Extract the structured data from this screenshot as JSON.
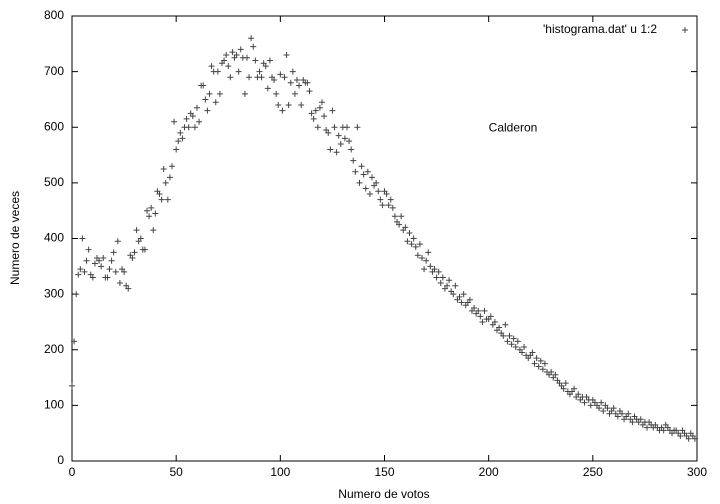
{
  "chart_data": {
    "type": "scatter",
    "xlabel": "Numero de votos",
    "ylabel": "Numero de veces",
    "annotation": "Calderon",
    "xlim": [
      0,
      300
    ],
    "xticks": [
      0,
      50,
      100,
      150,
      200,
      250,
      300
    ],
    "ylim": [
      0,
      800
    ],
    "yticks": [
      0,
      100,
      200,
      300,
      400,
      500,
      600,
      700,
      800
    ],
    "legend": "top-right",
    "grid": false,
    "x": [
      0,
      1,
      2,
      3,
      4,
      5,
      6,
      7,
      8,
      9,
      10,
      11,
      12,
      13,
      14,
      15,
      16,
      17,
      18,
      19,
      20,
      21,
      22,
      23,
      24,
      25,
      26,
      27,
      28,
      29,
      30,
      31,
      32,
      33,
      34,
      35,
      36,
      37,
      38,
      39,
      40,
      41,
      42,
      43,
      44,
      45,
      46,
      47,
      48,
      49,
      50,
      51,
      52,
      53,
      54,
      55,
      56,
      57,
      58,
      59,
      60,
      61,
      62,
      63,
      64,
      65,
      66,
      67,
      68,
      69,
      70,
      71,
      72,
      73,
      74,
      75,
      76,
      77,
      78,
      79,
      80,
      81,
      82,
      83,
      84,
      85,
      86,
      87,
      88,
      89,
      90,
      91,
      92,
      93,
      94,
      95,
      96,
      97,
      98,
      99,
      100,
      101,
      102,
      103,
      104,
      105,
      106,
      107,
      108,
      109,
      110,
      111,
      112,
      113,
      114,
      115,
      116,
      117,
      118,
      119,
      120,
      121,
      122,
      123,
      124,
      125,
      126,
      127,
      128,
      129,
      130,
      131,
      132,
      133,
      134,
      135,
      136,
      137,
      138,
      139,
      140,
      141,
      142,
      143,
      144,
      145,
      146,
      147,
      148,
      149,
      150,
      151,
      152,
      153,
      154,
      155,
      156,
      157,
      158,
      159,
      160,
      161,
      162,
      163,
      164,
      165,
      166,
      167,
      168,
      169,
      170,
      171,
      172,
      173,
      174,
      175,
      176,
      177,
      178,
      179,
      180,
      181,
      182,
      183,
      184,
      185,
      186,
      187,
      188,
      189,
      190,
      191,
      192,
      193,
      194,
      195,
      196,
      197,
      198,
      199,
      200,
      201,
      202,
      203,
      204,
      205,
      206,
      207,
      208,
      209,
      210,
      211,
      212,
      213,
      214,
      215,
      216,
      217,
      218,
      219,
      220,
      221,
      222,
      223,
      224,
      225,
      226,
      227,
      228,
      229,
      230,
      231,
      232,
      233,
      234,
      235,
      236,
      237,
      238,
      239,
      240,
      241,
      242,
      243,
      244,
      245,
      246,
      247,
      248,
      249,
      250,
      251,
      252,
      253,
      254,
      255,
      256,
      257,
      258,
      259,
      260,
      261,
      262,
      263,
      264,
      265,
      266,
      267,
      268,
      269,
      270,
      271,
      272,
      273,
      274,
      275,
      276,
      277,
      278,
      279,
      280,
      281,
      282,
      283,
      284,
      285,
      286,
      287,
      288,
      289,
      290,
      291,
      292,
      293,
      294,
      295,
      296,
      297,
      298,
      299
    ],
    "series": [
      {
        "name": "'histograma.dat' u 1:2",
        "color": "#444444",
        "values": [
          135,
          215,
          300,
          335,
          345,
          400,
          340,
          360,
          380,
          335,
          330,
          355,
          365,
          360,
          350,
          365,
          330,
          330,
          345,
          360,
          375,
          340,
          395,
          320,
          345,
          340,
          315,
          310,
          370,
          365,
          375,
          415,
          395,
          400,
          380,
          380,
          450,
          440,
          455,
          415,
          445,
          485,
          480,
          470,
          525,
          500,
          470,
          510,
          530,
          610,
          560,
          575,
          590,
          580,
          600,
          615,
          600,
          625,
          620,
          600,
          635,
          610,
          675,
          675,
          650,
          630,
          660,
          710,
          700,
          645,
          700,
          660,
          715,
          720,
          730,
          710,
          690,
          735,
          725,
          730,
          700,
          740,
          725,
          660,
          725,
          690,
          760,
          745,
          720,
          690,
          700,
          690,
          715,
          710,
          670,
          720,
          690,
          685,
          660,
          640,
          695,
          630,
          690,
          730,
          640,
          680,
          700,
          660,
          685,
          675,
          640,
          685,
          680,
          680,
          665,
          625,
          615,
          630,
          600,
          635,
          645,
          620,
          595,
          590,
          560,
          630,
          600,
          555,
          585,
          570,
          600,
          580,
          600,
          575,
          560,
          540,
          520,
          600,
          500,
          530,
          515,
          490,
          520,
          480,
          510,
          495,
          500,
          485,
          470,
          460,
          485,
          480,
          460,
          470,
          455,
          440,
          430,
          425,
          440,
          415,
          420,
          395,
          410,
          390,
          400,
          385,
          370,
          390,
          365,
          345,
          360,
          375,
          350,
          340,
          345,
          330,
          340,
          320,
          330,
          310,
          315,
          325,
          305,
          300,
          315,
          290,
          295,
          285,
          300,
          280,
          285,
          290,
          270,
          275,
          265,
          270,
          260,
          250,
          270,
          255,
          255,
          260,
          245,
          250,
          235,
          240,
          230,
          225,
          245,
          215,
          225,
          210,
          220,
          205,
          215,
          200,
          195,
          205,
          190,
          185,
          190,
          195,
          175,
          185,
          170,
          180,
          165,
          175,
          160,
          155,
          160,
          150,
          155,
          145,
          140,
          135,
          130,
          140,
          125,
          120,
          125,
          130,
          115,
          120,
          110,
          115,
          105,
          115,
          110,
          100,
          110,
          105,
          100,
          95,
          105,
          90,
          100,
          95,
          85,
          90,
          95,
          85,
          80,
          90,
          85,
          75,
          80,
          85,
          75,
          70,
          80,
          75,
          70,
          75,
          65,
          70,
          60,
          70,
          65,
          60,
          65,
          60,
          55,
          60,
          55,
          65,
          60,
          55,
          50,
          55,
          55,
          50,
          45,
          55,
          50,
          45,
          40,
          50,
          45,
          40
        ]
      }
    ]
  }
}
